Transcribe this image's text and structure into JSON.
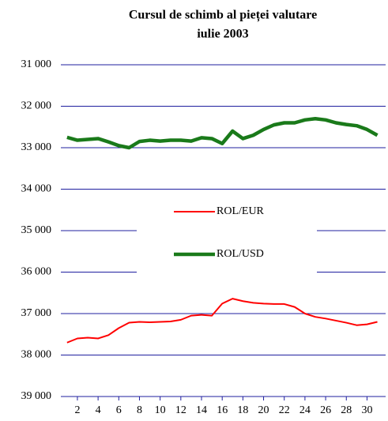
{
  "chart_data": {
    "type": "line",
    "title": [
      "Cursul de schimb al pieței valutare",
      "iulie 2003"
    ],
    "x": [
      1,
      2,
      3,
      4,
      5,
      6,
      7,
      8,
      9,
      10,
      11,
      12,
      13,
      14,
      15,
      16,
      17,
      18,
      19,
      20,
      21,
      22,
      23,
      24,
      25,
      26,
      27,
      28,
      29,
      30,
      31
    ],
    "xlim": [
      0.4,
      31.8
    ],
    "xticks": [
      2,
      4,
      6,
      8,
      10,
      12,
      14,
      16,
      18,
      20,
      22,
      24,
      26,
      28,
      30
    ],
    "ylim": [
      31000,
      39000
    ],
    "y_inverted": true,
    "yticks": [
      {
        "value": 31000,
        "label": "31 000"
      },
      {
        "value": 32000,
        "label": "32 000"
      },
      {
        "value": 33000,
        "label": "33 000"
      },
      {
        "value": 34000,
        "label": "34 000"
      },
      {
        "value": 35000,
        "label": "35 000"
      },
      {
        "value": 36000,
        "label": "36 000"
      },
      {
        "value": 37000,
        "label": "37 000"
      },
      {
        "value": 38000,
        "label": "38 000"
      },
      {
        "value": 39000,
        "label": "39 000"
      }
    ],
    "grid": true,
    "grid_color": "#1f1f9f",
    "series": [
      {
        "name": "ROL/EUR",
        "color": "#ff0000",
        "width": 2,
        "values": [
          37700,
          37600,
          37580,
          37600,
          37520,
          37350,
          37220,
          37200,
          37210,
          37200,
          37190,
          37150,
          37050,
          37030,
          37050,
          36760,
          36640,
          36700,
          36740,
          36760,
          36770,
          36770,
          36840,
          37000,
          37080,
          37120,
          37170,
          37220,
          37280,
          37260,
          37200
        ]
      },
      {
        "name": "ROL/USD",
        "color": "#1a7a1a",
        "width": 4.5,
        "values": [
          32750,
          32820,
          32800,
          32780,
          32860,
          32950,
          33000,
          32850,
          32820,
          32840,
          32820,
          32820,
          32840,
          32760,
          32780,
          32900,
          32600,
          32780,
          32700,
          32560,
          32450,
          32400,
          32400,
          32330,
          32300,
          32330,
          32400,
          32440,
          32470,
          32560,
          32700
        ]
      }
    ]
  }
}
